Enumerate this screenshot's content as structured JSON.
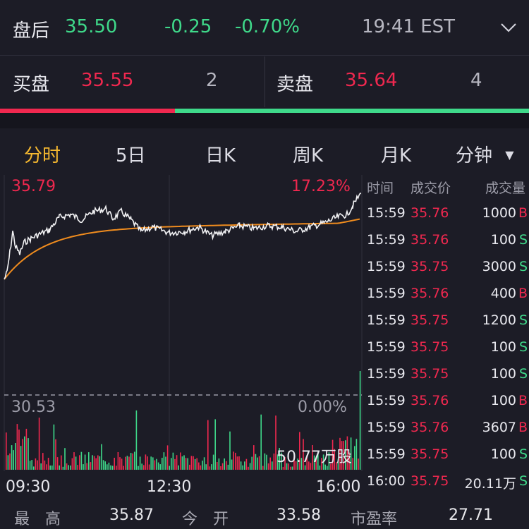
{
  "header": {
    "session_label": "盘后",
    "price": "35.50",
    "change": "-0.25",
    "change_pct": "-0.70%",
    "time": "19:41 EST"
  },
  "orderbook": {
    "bid_label": "买盘",
    "bid_price": "35.55",
    "bid_size": "2",
    "ask_label": "卖盘",
    "ask_price": "35.64",
    "ask_size": "4",
    "bid_ratio": 0.33
  },
  "tabs": [
    "分时",
    "5日",
    "日K",
    "周K",
    "月K",
    "分钟"
  ],
  "chart": {
    "high_price": "35.79",
    "high_pct": "17.23%",
    "base_price": "30.53",
    "base_pct": "0.00%",
    "volume_label": "50.77万股",
    "x_labels": [
      "09:30",
      "12:30",
      "16:00"
    ]
  },
  "ticks": {
    "headers": [
      "时间",
      "成交价",
      "成交量"
    ],
    "rows": [
      {
        "time": "15:59",
        "price": "35.76",
        "vol": "1000",
        "side": "B"
      },
      {
        "time": "15:59",
        "price": "35.76",
        "vol": "100",
        "side": "S"
      },
      {
        "time": "15:59",
        "price": "35.75",
        "vol": "3000",
        "side": "S"
      },
      {
        "time": "15:59",
        "price": "35.76",
        "vol": "400",
        "side": "B"
      },
      {
        "time": "15:59",
        "price": "35.75",
        "vol": "1200",
        "side": "S"
      },
      {
        "time": "15:59",
        "price": "35.75",
        "vol": "100",
        "side": "S"
      },
      {
        "time": "15:59",
        "price": "35.75",
        "vol": "100",
        "side": "S"
      },
      {
        "time": "15:59",
        "price": "35.76",
        "vol": "100",
        "side": "B"
      },
      {
        "time": "15:59",
        "price": "35.76",
        "vol": "3607",
        "side": "B"
      },
      {
        "time": "15:59",
        "price": "35.75",
        "vol": "100",
        "side": "S"
      },
      {
        "time": "16:00",
        "price": "35.75",
        "vol": "20.11万",
        "side": "S"
      }
    ]
  },
  "stats": {
    "high_label": "最　高",
    "high_value": "35.87",
    "open_label": "今　开",
    "open_value": "33.58",
    "pe_label": "市盈率",
    "pe_value": "27.71"
  },
  "colors": {
    "up": "#f0284f",
    "down": "#3fd98a",
    "accent": "#f5b830",
    "avg_line": "#f08c1e"
  }
}
